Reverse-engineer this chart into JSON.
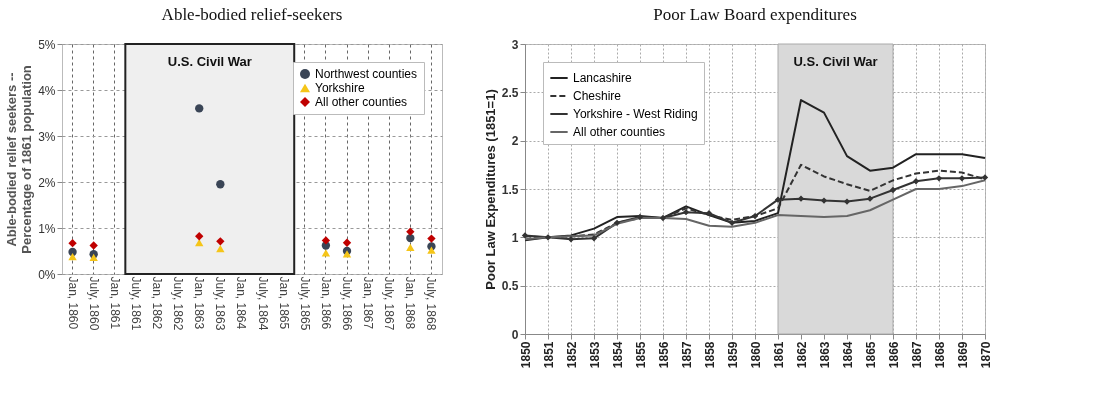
{
  "chart_data": [
    {
      "type": "scatter",
      "title": "Able-bodied relief-seekers",
      "ylabel": "Able-bodied relief seekers --\nPercentage of 1861 population",
      "categories": [
        "Jan, 1860",
        "July, 1860",
        "Jan, 1861",
        "July, 1861",
        "Jan, 1862",
        "July, 1862",
        "Jan, 1863",
        "July, 1863",
        "Jan, 1864",
        "July, 1864",
        "Jan, 1865",
        "July, 1865",
        "Jan, 1866",
        "July, 1866",
        "Jan, 1867",
        "July, 1867",
        "Jan, 1868",
        "July, 1868"
      ],
      "series": [
        {
          "name": "Northwest counties",
          "color": "#3a4556",
          "marker": "circle",
          "values": [
            0.48,
            0.43,
            null,
            null,
            null,
            null,
            3.6,
            1.95,
            null,
            null,
            null,
            null,
            0.62,
            0.5,
            null,
            null,
            0.78,
            0.6
          ]
        },
        {
          "name": "Yorkshire",
          "color": "#f5c518",
          "marker": "triangle",
          "values": [
            0.38,
            0.36,
            null,
            null,
            null,
            null,
            0.68,
            0.55,
            null,
            null,
            null,
            null,
            0.46,
            0.44,
            null,
            null,
            0.58,
            0.52
          ]
        },
        {
          "name": "All other counties",
          "color": "#c00000",
          "marker": "diamond",
          "values": [
            0.67,
            0.62,
            null,
            null,
            null,
            null,
            0.82,
            0.71,
            null,
            null,
            null,
            null,
            0.73,
            0.68,
            null,
            null,
            0.92,
            0.77
          ]
        }
      ],
      "ylim": [
        0,
        5
      ],
      "yticks": [
        {
          "value": 0,
          "label": "0%"
        },
        {
          "value": 1,
          "label": "1%"
        },
        {
          "value": 2,
          "label": "2%"
        },
        {
          "value": 3,
          "label": "3%"
        },
        {
          "value": 4,
          "label": "4%"
        },
        {
          "value": 5,
          "label": "5%"
        }
      ],
      "bands": [
        {
          "axis": "x",
          "from": "July, 1861",
          "to": "Jan, 1865",
          "label": "U.S. Civil War",
          "color": "#efefef"
        }
      ],
      "grid": true,
      "legend": "top right"
    },
    {
      "type": "line",
      "title": "Poor Law Board expenditures",
      "ylabel": "Poor Law Expenditures (1851=1)",
      "x": [
        1850,
        1851,
        1852,
        1853,
        1854,
        1855,
        1856,
        1857,
        1858,
        1859,
        1860,
        1861,
        1862,
        1863,
        1864,
        1865,
        1866,
        1867,
        1868,
        1869,
        1870
      ],
      "series": [
        {
          "name": "Lancashire",
          "color": "#222222",
          "line_style": "solid",
          "marker": "none",
          "values": [
            0.97,
            1.0,
            1.02,
            1.09,
            1.21,
            1.22,
            1.2,
            1.32,
            1.23,
            1.15,
            1.17,
            1.25,
            2.42,
            2.29,
            1.84,
            1.69,
            1.72,
            1.86,
            1.86,
            1.86,
            1.82
          ]
        },
        {
          "name": "Cheshire",
          "color": "#333333",
          "line_style": "dashed",
          "marker": "none",
          "values": [
            1.01,
            1.0,
            1.01,
            1.03,
            1.15,
            1.2,
            1.2,
            1.3,
            1.23,
            1.18,
            1.22,
            1.3,
            1.75,
            1.63,
            1.55,
            1.48,
            1.59,
            1.66,
            1.69,
            1.67,
            1.6
          ]
        },
        {
          "name": "Yorkshire - West Riding",
          "color": "#333333",
          "line_style": "solid",
          "marker": "diamond",
          "values": [
            1.02,
            1.0,
            0.98,
            0.99,
            1.15,
            1.21,
            1.2,
            1.26,
            1.25,
            1.15,
            1.22,
            1.39,
            1.4,
            1.38,
            1.37,
            1.4,
            1.49,
            1.58,
            1.61,
            1.61,
            1.62
          ]
        },
        {
          "name": "All other counties",
          "color": "#666666",
          "line_style": "solid",
          "marker": "none",
          "values": [
            0.98,
            1.0,
            1.01,
            1.02,
            1.14,
            1.2,
            1.2,
            1.19,
            1.12,
            1.11,
            1.15,
            1.23,
            1.22,
            1.21,
            1.22,
            1.28,
            1.39,
            1.5,
            1.5,
            1.53,
            1.59
          ]
        }
      ],
      "xlim": [
        1850,
        1870
      ],
      "xticks": [
        1850,
        1851,
        1852,
        1853,
        1854,
        1855,
        1856,
        1857,
        1858,
        1859,
        1860,
        1861,
        1862,
        1863,
        1864,
        1865,
        1866,
        1867,
        1868,
        1869,
        1870
      ],
      "ylim": [
        0,
        3
      ],
      "yticks": [
        0,
        0.5,
        1,
        1.5,
        2,
        2.5,
        3
      ],
      "bands": [
        {
          "axis": "x",
          "from": 1861,
          "to": 1866,
          "label": "U.S. Civil War",
          "color": "#d9d9d9"
        }
      ],
      "grid": true,
      "legend": "top left"
    }
  ]
}
